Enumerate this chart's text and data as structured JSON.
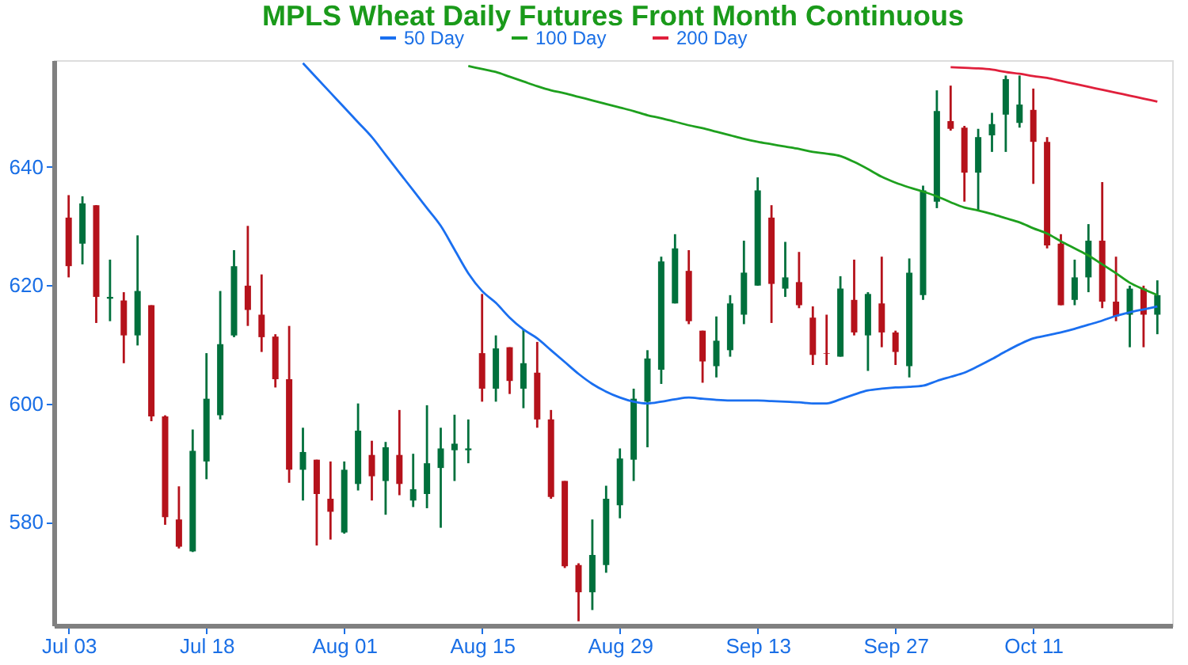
{
  "chart_data": {
    "type": "candlestick",
    "title": "MPLS Wheat Daily Futures Front Month Continuous",
    "categories": [
      "Jul 03",
      null,
      null,
      null,
      null,
      null,
      null,
      null,
      null,
      null,
      "Jul 18",
      null,
      null,
      null,
      null,
      null,
      null,
      null,
      null,
      null,
      "Aug 01",
      null,
      null,
      null,
      null,
      null,
      null,
      null,
      null,
      null,
      "Aug 15",
      null,
      null,
      null,
      null,
      null,
      null,
      null,
      null,
      null,
      "Aug 29",
      null,
      null,
      null,
      null,
      null,
      null,
      null,
      null,
      null,
      "Sep 13",
      null,
      null,
      null,
      null,
      null,
      null,
      null,
      null,
      null,
      "Sep 27",
      null,
      null,
      null,
      null,
      null,
      null,
      null,
      null,
      null,
      "Oct 11",
      null,
      null,
      null,
      null,
      null,
      null,
      null,
      null,
      null
    ],
    "ohlc": [
      [
        631.4,
        635.2,
        621.3,
        623.2
      ],
      [
        627,
        635,
        623.5,
        633.8
      ],
      [
        633.5,
        633.5,
        613.6,
        618
      ],
      [
        617.7,
        624.3,
        613.9,
        618
      ],
      [
        617.4,
        618.8,
        606.8,
        611.5
      ],
      [
        611.5,
        628.4,
        609.8,
        619
      ],
      [
        616.6,
        616.6,
        597,
        597.8
      ],
      [
        597.8,
        598,
        579.5,
        580.8
      ],
      [
        580.4,
        586,
        575.5,
        575.8
      ],
      [
        575,
        595.6,
        574.9,
        592
      ],
      [
        590.2,
        608.5,
        587.2,
        600.8
      ],
      [
        598,
        619,
        597.3,
        610
      ],
      [
        611.5,
        625.9,
        611.2,
        623.2
      ],
      [
        619.9,
        630,
        613.1,
        615.8
      ],
      [
        615,
        621.8,
        608.7,
        611.2
      ],
      [
        611.3,
        611.7,
        602.7,
        604.1
      ],
      [
        604.1,
        613.1,
        586.6,
        588.8
      ],
      [
        588.8,
        595.9,
        583.6,
        591.8
      ],
      [
        590.5,
        590.5,
        576,
        584.7
      ],
      [
        583.9,
        590.2,
        577,
        581.7
      ],
      [
        578.2,
        590.2,
        578,
        588.8
      ],
      [
        586.4,
        600,
        585.3,
        595.4
      ],
      [
        591.3,
        593.7,
        583.6,
        587.7
      ],
      [
        586.9,
        593.5,
        581.2,
        592.6
      ],
      [
        591.3,
        598.9,
        584.5,
        586.4
      ],
      [
        583.6,
        591.5,
        582.5,
        585.5
      ],
      [
        584.7,
        599.7,
        582.3,
        589.9
      ],
      [
        589.1,
        595.9,
        579,
        592.4
      ],
      [
        592.1,
        598.1,
        586.9,
        593.2
      ],
      [
        592.1,
        597.3,
        589.9,
        592.4
      ],
      [
        608.5,
        618.5,
        600.3,
        602.5
      ],
      [
        602.5,
        611.5,
        600.3,
        609.3
      ],
      [
        609.5,
        609.5,
        601.6,
        603.8
      ],
      [
        602.5,
        612.5,
        599.2,
        606.8
      ],
      [
        605.2,
        610.4,
        595.9,
        597.3
      ],
      [
        597.3,
        598.9,
        583.9,
        584.2
      ],
      [
        586.9,
        586.9,
        572.2,
        572.5
      ],
      [
        572.7,
        573,
        563.2,
        568.1
      ],
      [
        568.1,
        580.4,
        565.1,
        574.4
      ],
      [
        572.7,
        586.1,
        571.4,
        583.9
      ],
      [
        582.8,
        592.4,
        580.6,
        590.7
      ],
      [
        590.5,
        602.5,
        586.9,
        600.8
      ],
      [
        600.3,
        609,
        592.6,
        607.6
      ],
      [
        605.7,
        624.8,
        603.3,
        624
      ],
      [
        616.9,
        628.6,
        616.9,
        626.2
      ],
      [
        622.4,
        625.9,
        613.4,
        613.9
      ],
      [
        612.3,
        612.3,
        603.5,
        607.1
      ],
      [
        606.3,
        614.7,
        604.4,
        610.6
      ],
      [
        609,
        618.3,
        607.9,
        616.9
      ],
      [
        615,
        627.5,
        613.4,
        622.1
      ],
      [
        619.9,
        638.2,
        619.9,
        636
      ],
      [
        631.4,
        633.5,
        613.6,
        620.2
      ],
      [
        619.4,
        627.3,
        618,
        621.3
      ],
      [
        620.5,
        625.6,
        616.1,
        616.6
      ],
      [
        614.5,
        616.4,
        606.5,
        608.2
      ],
      [
        608.5,
        615,
        606.5,
        608.4
      ],
      [
        607.9,
        621.5,
        607.9,
        619.4
      ],
      [
        617.5,
        624.3,
        611.5,
        612
      ],
      [
        611.5,
        618.8,
        605.5,
        618.5
      ],
      [
        616.9,
        624.8,
        609.5,
        612
      ],
      [
        612,
        612.3,
        606.5,
        608.7
      ],
      [
        606.3,
        624.5,
        604.4,
        622.1
      ],
      [
        618.3,
        636.8,
        617.5,
        636
      ],
      [
        634.1,
        652.9,
        633,
        649.4
      ],
      [
        647.7,
        653.7,
        646.1,
        646.4
      ],
      [
        646.6,
        646.9,
        634.1,
        639
      ],
      [
        639,
        646.4,
        632.5,
        645
      ],
      [
        645.3,
        649.1,
        642.5,
        647.2
      ],
      [
        648.8,
        655.4,
        642.5,
        654.8
      ],
      [
        647.4,
        655.4,
        646.6,
        650.5
      ],
      [
        649.6,
        653.2,
        637.1,
        644.2
      ],
      [
        644.2,
        645,
        626.2,
        626.7
      ],
      [
        627,
        628.6,
        616.6,
        616.6
      ],
      [
        617.5,
        624.3,
        616.6,
        621.3
      ],
      [
        621.3,
        630.3,
        618.8,
        627.5
      ],
      [
        627.5,
        637.4,
        616.1,
        617.2
      ],
      [
        617.2,
        624.8,
        613.9,
        614.7
      ],
      [
        615,
        619.9,
        609.5,
        619.4
      ],
      [
        619.4,
        619.9,
        609.5,
        615
      ],
      [
        615,
        620.8,
        611.7,
        618.3
      ]
    ],
    "colors": [
      "#b5121b",
      "#00703c",
      "#b5121b",
      "#00703c",
      "#b5121b",
      "#00703c",
      "#b5121b",
      "#b5121b",
      "#b5121b",
      "#00703c",
      "#00703c",
      "#00703c",
      "#00703c",
      "#b5121b",
      "#b5121b",
      "#b5121b",
      "#b5121b",
      "#00703c",
      "#b5121b",
      "#b5121b",
      "#00703c",
      "#00703c",
      "#b5121b",
      "#00703c",
      "#b5121b",
      "#00703c",
      "#00703c",
      "#00703c",
      "#00703c",
      "#00703c",
      "#b5121b",
      "#00703c",
      "#b5121b",
      "#00703c",
      "#b5121b",
      "#b5121b",
      "#b5121b",
      "#b5121b",
      "#00703c",
      "#00703c",
      "#00703c",
      "#00703c",
      "#00703c",
      "#00703c",
      "#00703c",
      "#b5121b",
      "#b5121b",
      "#00703c",
      "#00703c",
      "#00703c",
      "#00703c",
      "#b5121b",
      "#00703c",
      "#b5121b",
      "#b5121b",
      "#b5121b",
      "#00703c",
      "#b5121b",
      "#00703c",
      "#b5121b",
      "#b5121b",
      "#00703c",
      "#00703c",
      "#00703c",
      "#b5121b",
      "#b5121b",
      "#00703c",
      "#00703c",
      "#00703c",
      "#00703c",
      "#b5121b",
      "#b5121b",
      "#b5121b",
      "#00703c",
      "#00703c",
      "#b5121b",
      "#b5121b",
      "#00703c",
      "#b5121b",
      "#00703c"
    ],
    "series": [
      {
        "name": "50 Day",
        "type": "line",
        "color": "#1a6ff0",
        "values": [
          null,
          null,
          null,
          null,
          null,
          null,
          null,
          null,
          null,
          null,
          null,
          null,
          null,
          null,
          null,
          null,
          null,
          657.5,
          655,
          652.5,
          650,
          647.5,
          645,
          642,
          639,
          636,
          633,
          630,
          626,
          622,
          619,
          617,
          614.5,
          612.5,
          611,
          609,
          607,
          605,
          603.3,
          602,
          601,
          600.3,
          600,
          600.3,
          600.7,
          601,
          600.8,
          600.6,
          600.5,
          600.5,
          600.5,
          600.4,
          600.3,
          600.2,
          600,
          600,
          600.7,
          601.5,
          602.2,
          602.5,
          602.7,
          602.8,
          603,
          603.8,
          604.5,
          605.2,
          606.3,
          607.5,
          608.8,
          610,
          611,
          611.5,
          612,
          612.6,
          613.3,
          614,
          614.8,
          615.4,
          615.9,
          616.4
        ]
      },
      {
        "name": "100 Day",
        "type": "line",
        "color": "#1ea01e",
        "values": [
          null,
          null,
          null,
          null,
          null,
          null,
          null,
          null,
          null,
          null,
          null,
          null,
          null,
          null,
          null,
          null,
          null,
          null,
          null,
          null,
          null,
          null,
          null,
          null,
          null,
          null,
          null,
          null,
          null,
          657,
          656.5,
          656,
          655.2,
          654.4,
          653.6,
          652.9,
          652.4,
          651.8,
          651.2,
          650.6,
          650,
          649.4,
          648.7,
          648.2,
          647.6,
          647,
          646.5,
          645.9,
          645.3,
          644.7,
          644.2,
          643.8,
          643.4,
          643,
          642.5,
          642.2,
          641.8,
          640.8,
          639.6,
          638.3,
          637.3,
          636.5,
          635.8,
          635,
          634,
          633.1,
          632.6,
          632,
          631.3,
          630.6,
          629.6,
          628.7,
          627.4,
          626.2,
          625,
          623.5,
          622,
          620.4,
          619.3,
          618.3
        ]
      },
      {
        "name": "200 Day",
        "type": "line",
        "color": "#e0203c",
        "values": [
          null,
          null,
          null,
          null,
          null,
          null,
          null,
          null,
          null,
          null,
          null,
          null,
          null,
          null,
          null,
          null,
          null,
          null,
          null,
          null,
          null,
          null,
          null,
          null,
          null,
          null,
          null,
          null,
          null,
          null,
          null,
          null,
          null,
          null,
          null,
          null,
          null,
          null,
          null,
          null,
          null,
          null,
          null,
          null,
          null,
          null,
          null,
          null,
          null,
          null,
          null,
          null,
          null,
          null,
          null,
          null,
          null,
          null,
          null,
          null,
          null,
          null,
          null,
          null,
          656.8,
          656.7,
          656.6,
          656.4,
          656,
          655.7,
          655.3,
          655,
          654.5,
          654,
          653.5,
          653,
          652.5,
          652,
          651.5,
          651
        ]
      }
    ],
    "ylim": [
      562.5,
      658
    ],
    "yticks": [
      580,
      600,
      620,
      640
    ],
    "legend": "top"
  }
}
